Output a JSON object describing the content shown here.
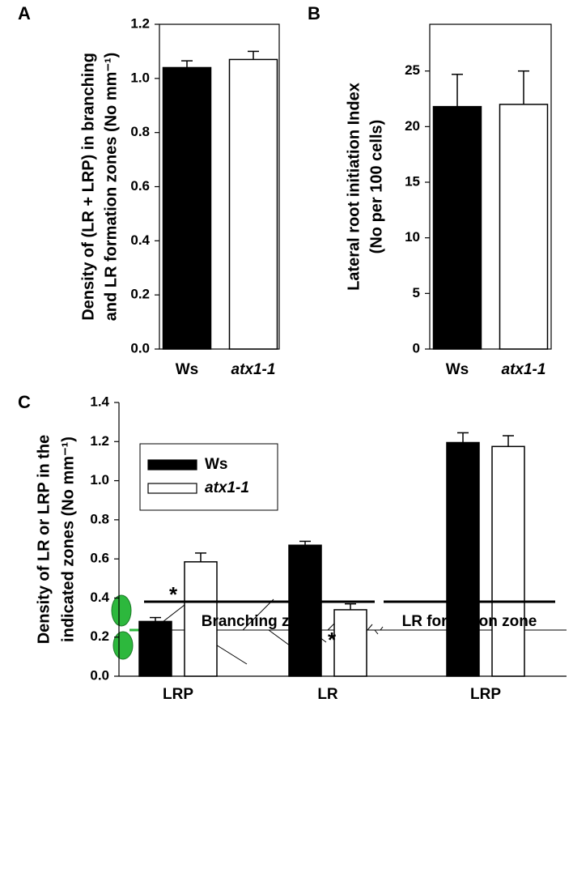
{
  "chart_data": [
    {
      "type": "bar",
      "panel": "A",
      "ylabel": [
        "Density of  (LR + LRP) in branching",
        "and LR formation zones (No mm⁻¹)"
      ],
      "categories": [
        "Ws",
        "atx1-1"
      ],
      "values": [
        1.04,
        1.07
      ],
      "errors": [
        0.025,
        0.03
      ],
      "colors": [
        "#000000",
        "#ffffff"
      ],
      "frame": true,
      "ylim": [
        0,
        1.2
      ],
      "yticks": [
        {
          "value": 0,
          "label": "0.0"
        },
        0.2,
        0.4,
        0.6,
        0.8,
        {
          "value": 1,
          "label": "1.0"
        },
        1.2
      ]
    },
    {
      "type": "bar",
      "panel": "B",
      "ylabel": [
        "Lateral root initiation Index",
        "(No per 100 cells)"
      ],
      "categories": [
        "Ws",
        "atx1-1"
      ],
      "values": [
        21.8,
        22.0
      ],
      "errors": [
        2.9,
        3.0
      ],
      "colors": [
        "#000000",
        "#ffffff"
      ],
      "frame": true,
      "ylim": [
        0,
        29.2
      ],
      "yticks": [
        0,
        5,
        10,
        15,
        20,
        25
      ]
    },
    {
      "type": "grouped_bar",
      "panel": "C",
      "ylabel": [
        "Density of LR or LRP in the",
        "indicated zones (No mm⁻¹)"
      ],
      "categories": [
        "LRP",
        "LR",
        "LRP"
      ],
      "series": [
        {
          "name": "Ws",
          "color": "#000000",
          "values": [
            0.28,
            0.67,
            1.195
          ],
          "errors": [
            0.02,
            0.02,
            0.05
          ]
        },
        {
          "name": "atx1-1",
          "color": "#ffffff",
          "values": [
            0.585,
            0.34,
            1.175
          ],
          "errors": [
            0.045,
            0.03,
            0.055
          ]
        }
      ],
      "frame": false,
      "annotations": [
        "*",
        "*"
      ],
      "zones": [
        "Branching zone",
        "LR formation zone"
      ],
      "ylim": [
        0,
        1.4
      ],
      "yticks": [
        {
          "value": 0,
          "label": "0.0"
        },
        0.2,
        0.4,
        0.6,
        0.8,
        {
          "value": 1,
          "label": "1.0"
        },
        1.2,
        1.4
      ]
    }
  ]
}
